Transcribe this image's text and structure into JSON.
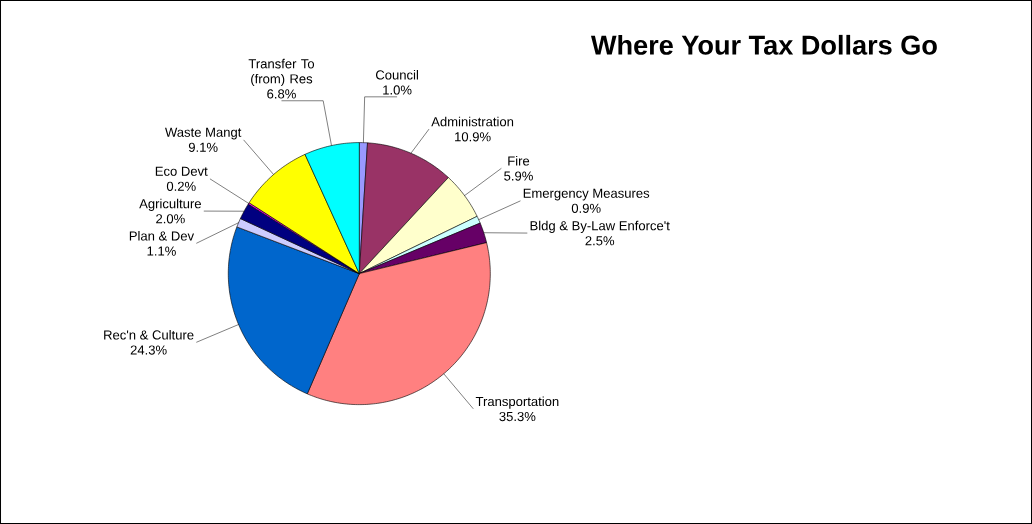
{
  "chart_data": {
    "type": "pie",
    "title": "Where Your Tax Dollars Go",
    "categories": [
      "Council",
      "Administration",
      "Fire",
      "Emergency Measures",
      "Bldg & By-Law Enforce't",
      "Transportation",
      "Rec'n & Culture",
      "Plan & Dev",
      "Agriculture",
      "Eco Devt",
      "Waste Mangt",
      "Transfer To (from) Res"
    ],
    "values": [
      1.0,
      10.9,
      5.9,
      0.9,
      2.5,
      35.3,
      24.3,
      1.1,
      2.0,
      0.2,
      9.1,
      6.8
    ],
    "colors": [
      "#9999ff",
      "#993366",
      "#ffffcc",
      "#ccffff",
      "#660066",
      "#ff8080",
      "#0066cc",
      "#ccccff",
      "#000080",
      "#ff00ff",
      "#ffff00",
      "#00ffff"
    ],
    "value_labels": [
      "1.0%",
      "10.9%",
      "5.9%",
      "0.9%",
      "2.5%",
      "35.3%",
      "24.3%",
      "1.1%",
      "2.0%",
      "0.2%",
      "9.1%",
      "6.8%"
    ]
  }
}
